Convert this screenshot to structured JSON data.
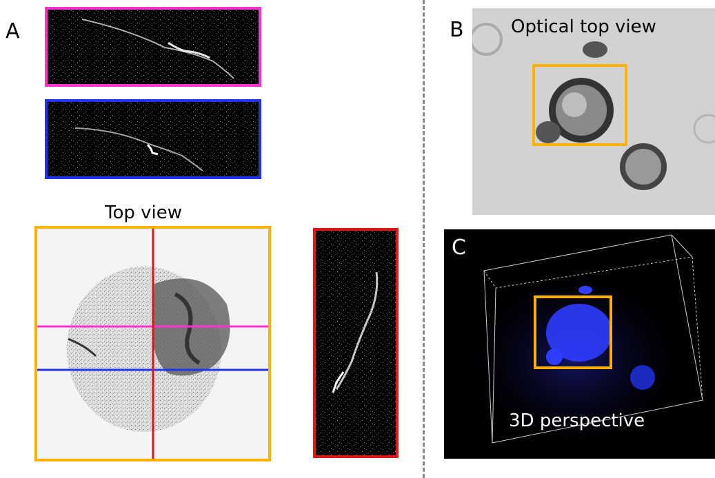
{
  "panels": {
    "a": {
      "letter": "A",
      "top_view_caption": "Top view"
    },
    "b": {
      "letter": "B",
      "caption": "Optical top view"
    },
    "c": {
      "letter": "C",
      "caption": "3D perspective"
    }
  },
  "colors": {
    "magenta": "#ff33cc",
    "blue": "#2233ee",
    "red": "#ee1111",
    "orange": "#ffb000",
    "divider": "#888888"
  }
}
